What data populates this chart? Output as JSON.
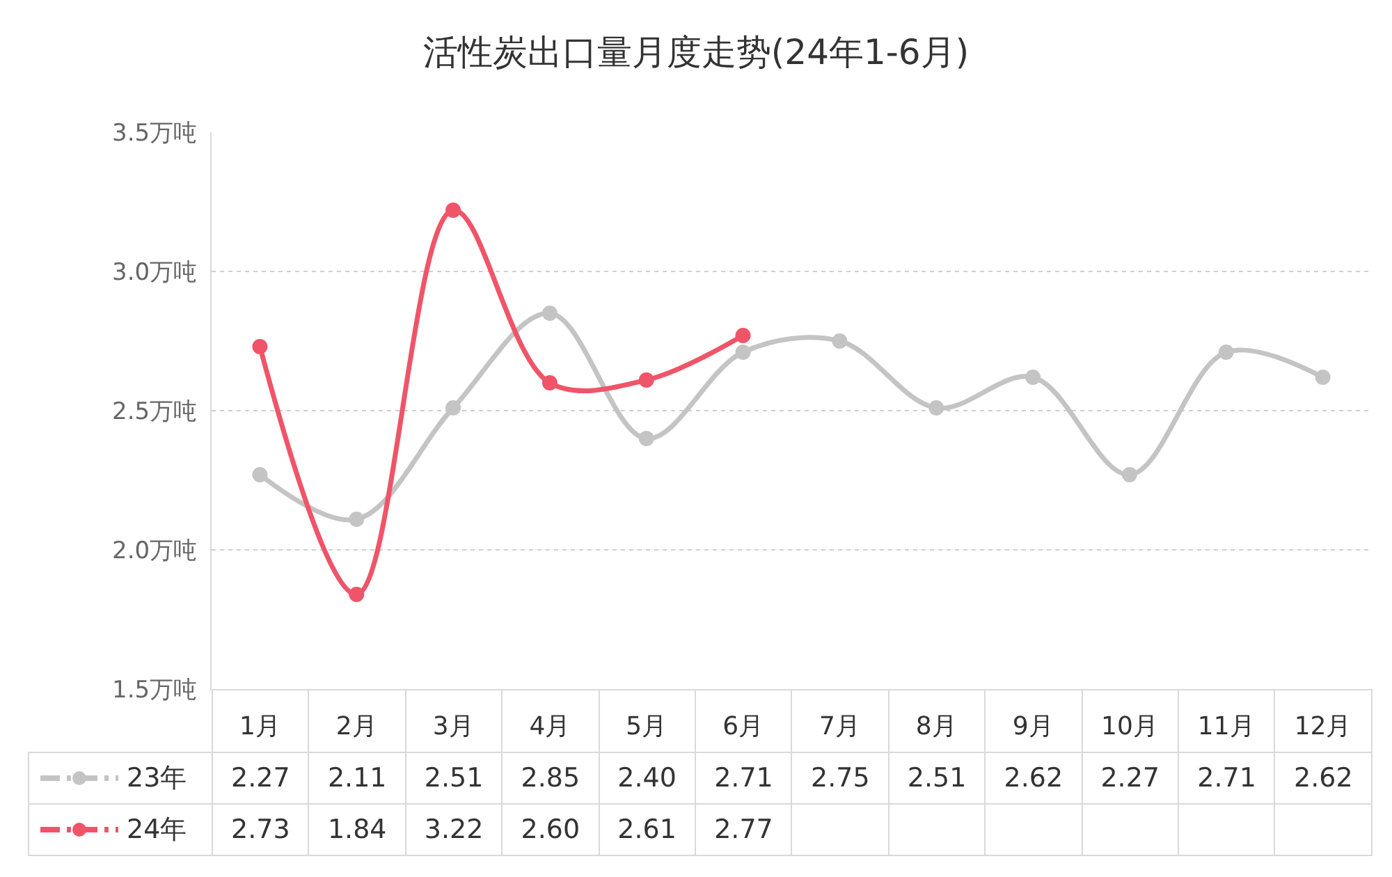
{
  "chart_data": {
    "type": "line",
    "title": "活性炭出口量月度走势(24年1-6月)",
    "categories": [
      "1月",
      "2月",
      "3月",
      "4月",
      "5月",
      "6月",
      "7月",
      "8月",
      "9月",
      "10月",
      "11月",
      "12月"
    ],
    "series": [
      {
        "name": "23年",
        "color": "#c4c4c4",
        "values": [
          2.27,
          2.11,
          2.51,
          2.85,
          2.4,
          2.71,
          2.75,
          2.51,
          2.62,
          2.27,
          2.71,
          2.62
        ],
        "value_labels": [
          "2.27",
          "2.11",
          "2.51",
          "2.85",
          "2.40",
          "2.71",
          "2.75",
          "2.51",
          "2.62",
          "2.27",
          "2.71",
          "2.62"
        ]
      },
      {
        "name": "24年",
        "color": "#ef5468",
        "values": [
          2.73,
          1.84,
          3.22,
          2.6,
          2.61,
          2.77,
          null,
          null,
          null,
          null,
          null,
          null
        ],
        "value_labels": [
          "2.73",
          "1.84",
          "3.22",
          "2.60",
          "2.61",
          "2.77",
          null,
          null,
          null,
          null,
          null,
          null
        ]
      }
    ],
    "ylim": [
      1.5,
      3.5
    ],
    "yticks": [
      {
        "value": 1.5,
        "label": "1.5万吨"
      },
      {
        "value": 2.0,
        "label": "2.0万吨"
      },
      {
        "value": 2.5,
        "label": "2.5万吨"
      },
      {
        "value": 3.0,
        "label": "3.0万吨"
      },
      {
        "value": 3.5,
        "label": "3.5万吨"
      }
    ],
    "grid": "y",
    "legend": "bottom left",
    "marker": "circle",
    "line_style": "solid"
  }
}
